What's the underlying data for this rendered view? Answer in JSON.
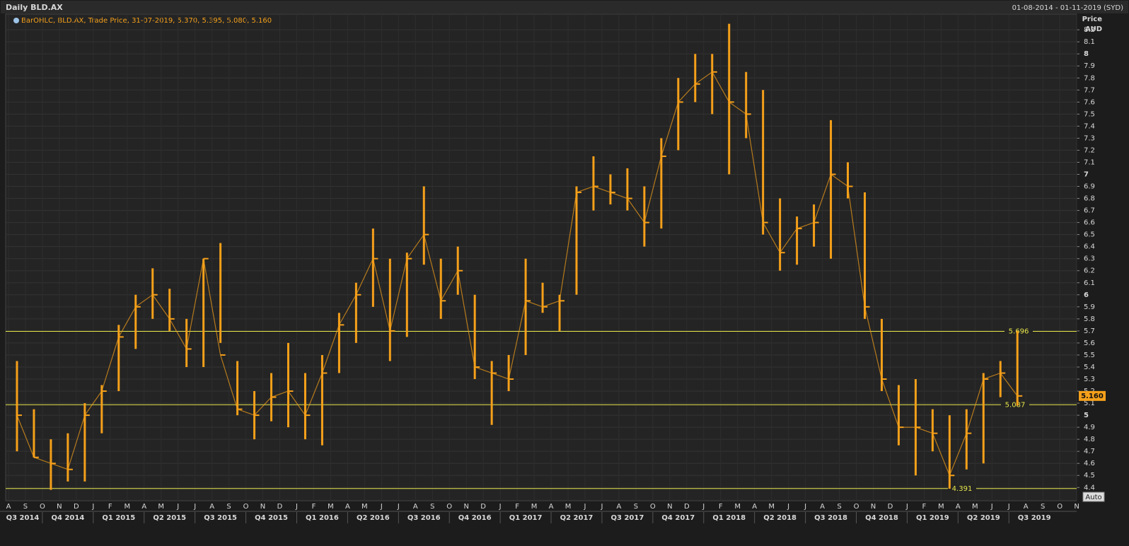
{
  "chart_data": {
    "type": "ohlc",
    "title": "Daily BLD.AX",
    "date_range": "01-08-2014 - 01-11-2019 (SYD)",
    "legend": "BarOHLC, BLD.AX, Trade Price, 31-07-2019, 5.370, 5.395, 5.080, 5.160",
    "y_axis_label": "Price",
    "y_axis_unit": "AUD",
    "auto_button": "Auto",
    "color": "#f5a01a",
    "level_color": "#e6e64a",
    "grid": true,
    "ylim": [
      4.29,
      8.33
    ],
    "yticks": [
      4.4,
      4.5,
      4.6,
      4.7,
      4.8,
      4.9,
      5,
      5.1,
      5.2,
      5.3,
      5.4,
      5.5,
      5.6,
      5.7,
      5.8,
      5.9,
      6,
      6.1,
      6.2,
      6.3,
      6.4,
      6.5,
      6.6,
      6.7,
      6.8,
      6.9,
      7,
      7.1,
      7.2,
      7.3,
      7.4,
      7.5,
      7.6,
      7.7,
      7.8,
      7.9,
      8,
      8.1,
      8.2
    ],
    "months": [
      "A",
      "S",
      "O",
      "N",
      "D",
      "J",
      "F",
      "M",
      "A",
      "M",
      "J",
      "J",
      "A",
      "S",
      "O",
      "N",
      "D",
      "J",
      "F",
      "M",
      "A",
      "M",
      "J",
      "J",
      "A",
      "S",
      "O",
      "N",
      "D",
      "J",
      "F",
      "M",
      "A",
      "M",
      "J",
      "J",
      "A",
      "S",
      "O",
      "N",
      "D",
      "J",
      "F",
      "M",
      "A",
      "M",
      "J",
      "J",
      "A",
      "S",
      "O",
      "N",
      "D",
      "J",
      "F",
      "M",
      "A",
      "M",
      "J",
      "J",
      "A",
      "S",
      "O",
      "N"
    ],
    "quarters": [
      "Q3 2014",
      "Q4 2014",
      "Q1 2015",
      "Q2 2015",
      "Q3 2015",
      "Q4 2015",
      "Q1 2016",
      "Q2 2016",
      "Q3 2016",
      "Q4 2016",
      "Q1 2017",
      "Q2 2017",
      "Q3 2017",
      "Q4 2017",
      "Q1 2018",
      "Q2 2018",
      "Q3 2018",
      "Q4 2018",
      "Q1 2019",
      "Q2 2019",
      "Q3 2019"
    ],
    "x": [
      "2014-08",
      "2014-09",
      "2014-10",
      "2014-11",
      "2014-12",
      "2015-01",
      "2015-02",
      "2015-03",
      "2015-04",
      "2015-05",
      "2015-06",
      "2015-07",
      "2015-08",
      "2015-09",
      "2015-10",
      "2015-11",
      "2015-12",
      "2016-01",
      "2016-02",
      "2016-03",
      "2016-04",
      "2016-05",
      "2016-06",
      "2016-07",
      "2016-08",
      "2016-09",
      "2016-10",
      "2016-11",
      "2016-12",
      "2017-01",
      "2017-02",
      "2017-03",
      "2017-04",
      "2017-05",
      "2017-06",
      "2017-07",
      "2017-08",
      "2017-09",
      "2017-10",
      "2017-11",
      "2017-12",
      "2018-01",
      "2018-02",
      "2018-03",
      "2018-04",
      "2018-05",
      "2018-06",
      "2018-07",
      "2018-08",
      "2018-09",
      "2018-10",
      "2018-11",
      "2018-12",
      "2019-01",
      "2019-02",
      "2019-03",
      "2019-04",
      "2019-05",
      "2019-06",
      "2019-07"
    ],
    "high": [
      5.45,
      5.05,
      4.8,
      4.85,
      5.1,
      5.25,
      5.75,
      6.0,
      6.22,
      6.05,
      5.8,
      6.3,
      6.43,
      5.45,
      5.2,
      5.35,
      5.6,
      5.35,
      5.5,
      5.85,
      6.1,
      6.55,
      6.3,
      6.35,
      6.9,
      6.3,
      6.4,
      6.0,
      5.45,
      5.5,
      6.3,
      6.1,
      6.0,
      6.9,
      7.15,
      7.0,
      7.05,
      6.9,
      7.3,
      7.8,
      8.0,
      8.0,
      8.25,
      7.85,
      7.7,
      6.8,
      6.65,
      6.75,
      7.45,
      7.1,
      6.85,
      5.8,
      5.25,
      5.3,
      5.05,
      5.0,
      5.05,
      5.35,
      5.45,
      5.7
    ],
    "low": [
      4.7,
      4.65,
      4.38,
      4.45,
      4.45,
      4.85,
      5.2,
      5.55,
      5.8,
      5.7,
      5.4,
      5.4,
      5.6,
      5.0,
      4.8,
      4.95,
      4.9,
      4.8,
      4.75,
      5.35,
      5.6,
      5.9,
      5.45,
      5.65,
      6.25,
      5.8,
      6.0,
      5.3,
      4.92,
      5.2,
      5.5,
      5.85,
      5.7,
      6.0,
      6.7,
      6.75,
      6.7,
      6.4,
      6.55,
      7.2,
      7.6,
      7.5,
      7.0,
      7.3,
      6.5,
      6.2,
      6.25,
      6.4,
      6.3,
      6.8,
      5.8,
      5.2,
      4.75,
      4.5,
      4.7,
      4.39,
      4.55,
      4.6,
      5.15,
      5.08
    ],
    "close": [
      5.0,
      4.65,
      4.6,
      4.55,
      5.0,
      5.2,
      5.65,
      5.9,
      6.0,
      5.8,
      5.55,
      6.3,
      5.5,
      5.05,
      5.0,
      5.15,
      5.2,
      5.0,
      5.35,
      5.75,
      6.0,
      6.3,
      5.7,
      6.3,
      6.5,
      5.95,
      6.2,
      5.4,
      5.35,
      5.3,
      5.95,
      5.9,
      5.95,
      6.85,
      6.9,
      6.85,
      6.8,
      6.6,
      7.15,
      7.6,
      7.75,
      7.85,
      7.6,
      7.5,
      6.6,
      6.35,
      6.55,
      6.6,
      7.0,
      6.9,
      5.9,
      5.3,
      4.9,
      4.9,
      4.85,
      4.5,
      4.85,
      5.3,
      5.35,
      5.16
    ],
    "levels": [
      5.696,
      5.087,
      4.391
    ],
    "last_price": {
      "value": 5.16,
      "label": "5.160"
    }
  }
}
